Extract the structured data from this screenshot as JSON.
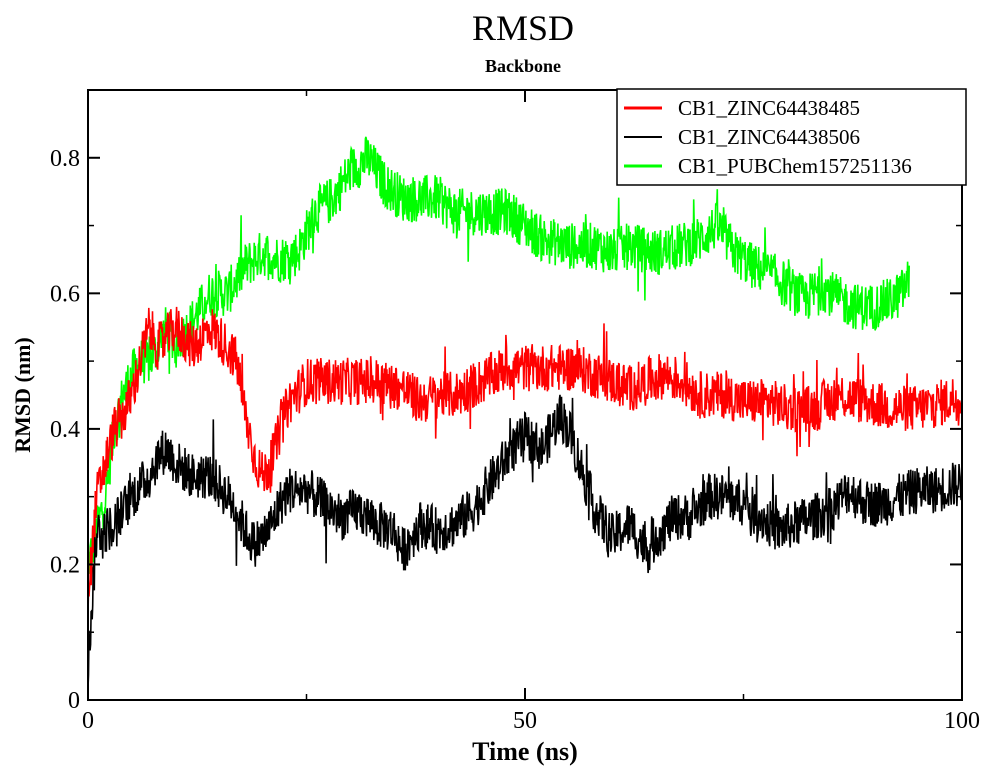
{
  "chart_data": {
    "type": "line",
    "title": "RMSD",
    "subtitle": "Backbone",
    "xlabel": "Time (ns)",
    "ylabel": "RMSD (nm)",
    "xlim": [
      0,
      100
    ],
    "ylim": [
      0,
      0.9
    ],
    "xticks": [
      0,
      50,
      100
    ],
    "xminor": [
      25,
      75
    ],
    "yticks": [
      0,
      0.2,
      0.4,
      0.6,
      0.8
    ],
    "ytick_labels": [
      "0",
      "0.2",
      "0.4",
      "0.6",
      "0.8"
    ],
    "xtick_labels": [
      "0",
      "50",
      "100"
    ],
    "grid": false,
    "legend_position": "top-right",
    "noise_amplitude": 0.035,
    "series": [
      {
        "name": "CB1_ZINC64438485",
        "color": "#ff0000",
        "x": [
          0,
          1,
          2,
          3,
          4,
          5,
          6,
          7,
          8,
          10,
          12,
          14,
          16,
          17,
          18,
          19,
          20,
          21,
          22,
          23,
          25,
          27,
          30,
          33,
          36,
          38,
          40,
          42,
          45,
          48,
          50,
          53,
          56,
          58,
          60,
          62,
          64,
          66,
          68,
          70,
          73,
          75,
          78,
          80,
          83,
          86,
          89,
          92,
          95,
          98,
          100
        ],
        "y": [
          0.15,
          0.3,
          0.35,
          0.4,
          0.42,
          0.45,
          0.5,
          0.55,
          0.52,
          0.55,
          0.52,
          0.55,
          0.52,
          0.5,
          0.42,
          0.36,
          0.33,
          0.35,
          0.4,
          0.44,
          0.47,
          0.47,
          0.47,
          0.47,
          0.46,
          0.44,
          0.45,
          0.45,
          0.47,
          0.49,
          0.49,
          0.49,
          0.49,
          0.48,
          0.47,
          0.46,
          0.47,
          0.48,
          0.47,
          0.45,
          0.45,
          0.44,
          0.44,
          0.43,
          0.43,
          0.45,
          0.44,
          0.43,
          0.43,
          0.44,
          0.45
        ]
      },
      {
        "name": "CB1_ZINC64438506",
        "color": "#000000",
        "x": [
          0,
          1,
          2,
          3,
          5,
          7,
          8,
          9,
          10,
          12,
          14,
          16,
          17,
          18,
          19,
          20,
          21,
          22,
          23,
          25,
          27,
          29,
          31,
          33,
          35,
          36,
          38,
          40,
          42,
          44,
          46,
          48,
          50,
          52,
          54,
          55,
          57,
          58,
          60,
          62,
          64,
          65,
          67,
          69,
          71,
          73,
          75,
          77,
          79,
          81,
          83,
          85,
          87,
          89,
          91,
          93,
          95,
          97,
          100
        ],
        "y": [
          0.05,
          0.25,
          0.25,
          0.26,
          0.3,
          0.33,
          0.36,
          0.37,
          0.35,
          0.33,
          0.33,
          0.3,
          0.28,
          0.25,
          0.23,
          0.24,
          0.26,
          0.29,
          0.31,
          0.31,
          0.29,
          0.27,
          0.28,
          0.26,
          0.25,
          0.22,
          0.26,
          0.25,
          0.26,
          0.28,
          0.32,
          0.36,
          0.39,
          0.37,
          0.42,
          0.4,
          0.32,
          0.28,
          0.24,
          0.26,
          0.22,
          0.24,
          0.27,
          0.27,
          0.3,
          0.3,
          0.29,
          0.27,
          0.25,
          0.26,
          0.27,
          0.28,
          0.31,
          0.29,
          0.29,
          0.3,
          0.31,
          0.31,
          0.32
        ]
      },
      {
        "name": "CB1_PUBChem157251136",
        "color": "#00ff00",
        "x": [
          0,
          1,
          2,
          3,
          4,
          5,
          6,
          7,
          8,
          9,
          10,
          12,
          14,
          16,
          18,
          20,
          22,
          24,
          26,
          28,
          30,
          32,
          34,
          36,
          38,
          40,
          42,
          45,
          48,
          50,
          52,
          55,
          58,
          60,
          62,
          65,
          68,
          70,
          72,
          74,
          76,
          78,
          80,
          82,
          84,
          86,
          88,
          90,
          92,
          93,
          94
        ],
        "y": [
          0.2,
          0.25,
          0.3,
          0.4,
          0.45,
          0.48,
          0.5,
          0.5,
          0.52,
          0.55,
          0.52,
          0.56,
          0.6,
          0.6,
          0.64,
          0.66,
          0.65,
          0.66,
          0.72,
          0.74,
          0.78,
          0.8,
          0.76,
          0.74,
          0.74,
          0.74,
          0.72,
          0.72,
          0.72,
          0.7,
          0.68,
          0.67,
          0.67,
          0.66,
          0.67,
          0.66,
          0.67,
          0.68,
          0.7,
          0.66,
          0.64,
          0.63,
          0.61,
          0.59,
          0.61,
          0.59,
          0.58,
          0.58,
          0.59,
          0.6,
          0.62
        ]
      }
    ]
  }
}
